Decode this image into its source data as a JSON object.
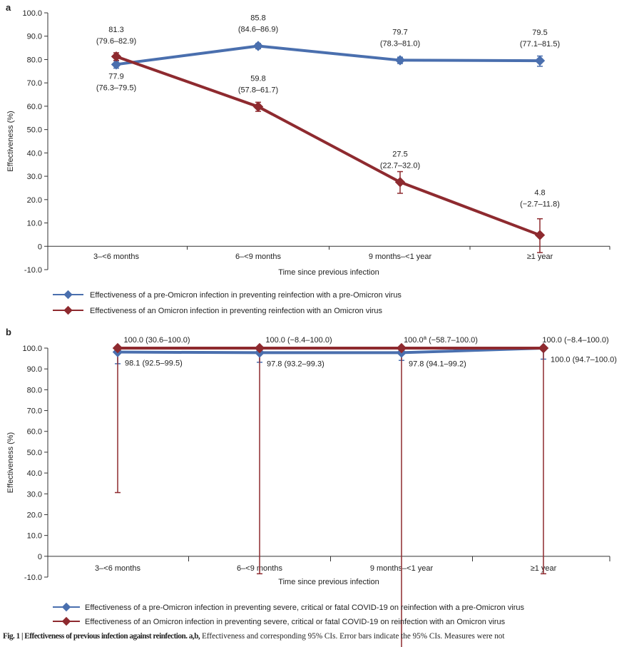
{
  "chart_data": [
    {
      "panel": "a",
      "type": "line",
      "ylabel": "Effectiveness (%)",
      "xlabel": "Time since previous infection",
      "categories": [
        "3–<6 months",
        "6–<9 months",
        "9 months–<1 year",
        "≥1 year"
      ],
      "ylim": [
        -10,
        100
      ],
      "yticks": [
        "100.0",
        "90.0",
        "80.0",
        "70.0",
        "60.0",
        "50.0",
        "40.0",
        "30.0",
        "20.0",
        "10.0",
        "0",
        "-10.0"
      ],
      "ytick_values": [
        100,
        90,
        80,
        70,
        60,
        50,
        40,
        30,
        20,
        10,
        0,
        -10
      ],
      "series": [
        {
          "name": "Effectiveness of a pre-Omicron infection in preventing reinfection with a pre-Omicron virus",
          "color": "#4a6fae",
          "values": [
            77.9,
            85.8,
            79.7,
            79.5
          ],
          "ci_low": [
            76.3,
            84.6,
            78.3,
            77.1
          ],
          "ci_high": [
            79.5,
            86.9,
            81.0,
            81.5
          ],
          "labels": [
            "77.9",
            "85.8",
            "79.7",
            "79.5"
          ],
          "ci_labels": [
            "(76.3–79.5)",
            "(84.6–86.9)",
            "(78.3–81.0)",
            "(77.1–81.5)"
          ]
        },
        {
          "name": "Effectiveness of an Omicron infection in preventing reinfection with an Omicron virus",
          "color": "#8e2a2f",
          "values": [
            81.3,
            59.8,
            27.5,
            4.8
          ],
          "ci_low": [
            79.6,
            57.8,
            22.7,
            -2.7
          ],
          "ci_high": [
            82.9,
            61.7,
            32.0,
            11.8
          ],
          "labels": [
            "81.3",
            "59.8",
            "27.5",
            "4.8"
          ],
          "ci_labels": [
            "(79.6–82.9)",
            "(57.8–61.7)",
            "(22.7–32.0)",
            "(−2.7–11.8)"
          ]
        }
      ]
    },
    {
      "panel": "b",
      "type": "line",
      "ylabel": "Effectiveness (%)",
      "xlabel": "Time since previous infection",
      "categories": [
        "3–<6 months",
        "6–<9 months",
        "9 months–<1 year",
        "≥1 year"
      ],
      "ylim": [
        -10,
        100
      ],
      "yticks": [
        "100.0",
        "90.0",
        "80.0",
        "70.0",
        "60.0",
        "50.0",
        "40.0",
        "30.0",
        "20.0",
        "10.0",
        "0",
        "-10.0"
      ],
      "ytick_values": [
        100,
        90,
        80,
        70,
        60,
        50,
        40,
        30,
        20,
        10,
        0,
        -10
      ],
      "series": [
        {
          "name": "Effectiveness of a pre-Omicron infection in preventing severe, critical or fatal COVID-19 on reinfection with a pre-Omicron virus",
          "color": "#4a6fae",
          "values": [
            98.1,
            97.8,
            97.8,
            100.0
          ],
          "ci_low": [
            92.5,
            93.2,
            94.1,
            94.7
          ],
          "ci_high": [
            99.5,
            99.3,
            99.2,
            100.0
          ],
          "labels": [
            "98.1 (92.5–99.5)",
            "97.8 (93.2–99.3)",
            "97.8 (94.1–99.2)",
            "100.0 (94.7–100.0)"
          ]
        },
        {
          "name": "Effectiveness of an Omicron infection in preventing severe, critical or fatal COVID-19 on reinfection with an Omicron virus",
          "color": "#8e2a2f",
          "values": [
            100.0,
            100.0,
            100.0,
            100.0
          ],
          "ci_low": [
            30.6,
            -8.4,
            -58.7,
            -8.4
          ],
          "ci_high": [
            100.0,
            100.0,
            100.0,
            100.0
          ],
          "labels": [
            "100.0 (30.6–100.0)",
            "100.0 (−8.4–100.0)",
            "100.0",
            "100.0 (−8.4–100.0)"
          ],
          "label_sup": [
            "",
            "",
            "a",
            ""
          ],
          "label_suffix": [
            "",
            "",
            " (−58.7–100.0)",
            ""
          ]
        }
      ]
    }
  ],
  "panel_labels": [
    "a",
    "b"
  ],
  "caption": {
    "bold": "Fig. 1 | Effectiveness of previous infection against reinfection. a,b,",
    "text": " Effectiveness and corresponding 95% CIs. Error bars indicate the 95% CIs. Measures were not"
  },
  "colors": {
    "blue": "#4a6fae",
    "red": "#8e2a2f",
    "axis": "#333333"
  }
}
